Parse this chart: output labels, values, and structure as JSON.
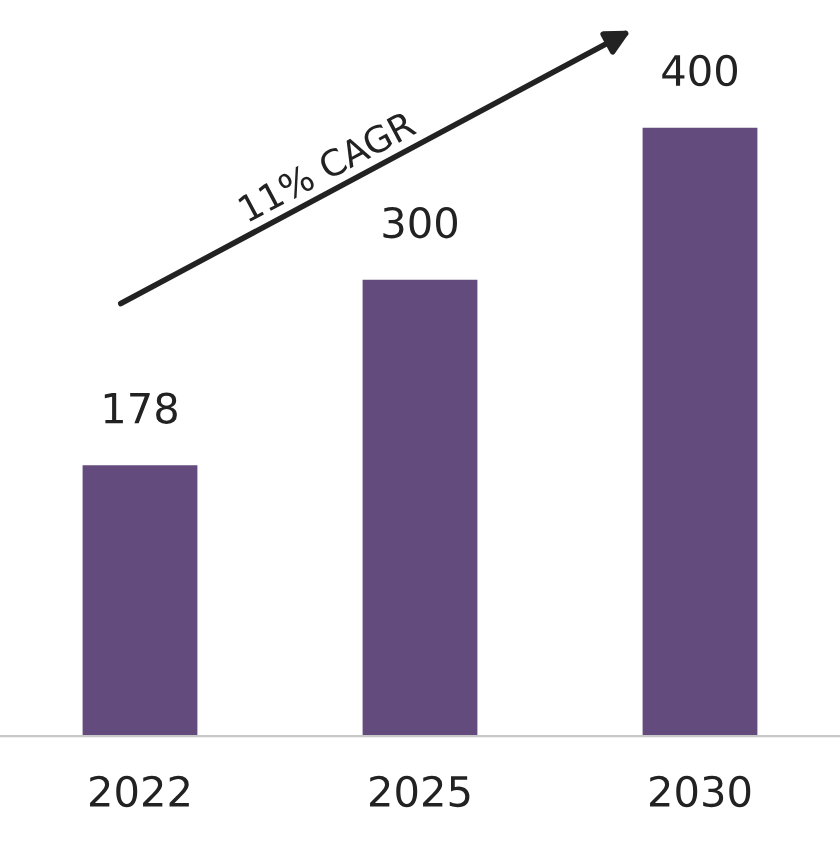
{
  "chart_data": {
    "type": "bar",
    "categories": [
      "2022",
      "2025",
      "2030"
    ],
    "values": [
      178,
      300,
      400
    ],
    "color": "#634b7e",
    "data_labels": true,
    "grid": false,
    "annotations": [
      "11% CAGR"
    ]
  }
}
